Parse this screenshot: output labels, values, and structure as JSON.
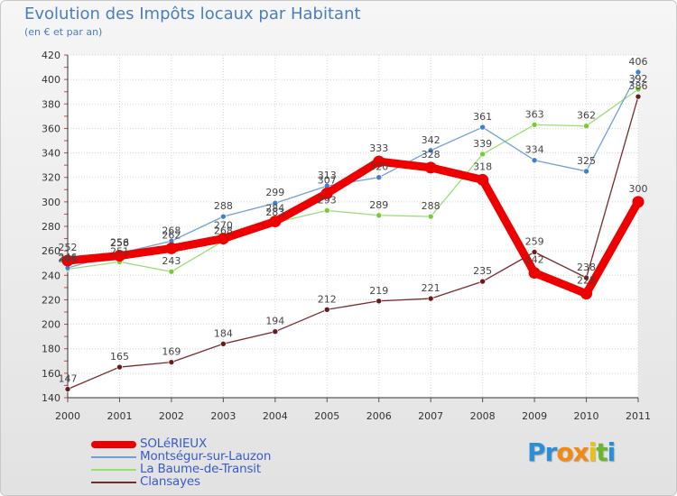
{
  "chart_data": {
    "type": "line",
    "title": "Evolution des Impôts locaux par Habitant",
    "subtitle": "(en € et par an)",
    "xlabel": "",
    "ylabel": "",
    "x": [
      "2000",
      "2001",
      "2002",
      "2003",
      "2004",
      "2005",
      "2006",
      "2007",
      "2008",
      "2009",
      "2010",
      "2011"
    ],
    "ylim": [
      140,
      420
    ],
    "yticks": [
      140,
      160,
      180,
      200,
      220,
      240,
      260,
      280,
      300,
      320,
      340,
      360,
      380,
      400,
      420
    ],
    "grid": true,
    "series": [
      {
        "name": "SOLéRIEUX",
        "color": "#ee0000",
        "marker": "#ee0000",
        "values": [
          252,
          256,
          262,
          270,
          284,
          307,
          333,
          328,
          318,
          242,
          225,
          300
        ]
      },
      {
        "name": "Montségur-sur-Lauzon",
        "color": "#6f9fd8",
        "marker": "#3f7fcf",
        "values": [
          246,
          258,
          268,
          288,
          299,
          313,
          320,
          342,
          361,
          334,
          325,
          406
        ]
      },
      {
        "name": "La Baume-de-Transit",
        "color": "#99dd77",
        "marker": "#77cc33",
        "values": [
          245,
          251,
          243,
          268,
          283,
          293,
          289,
          288,
          339,
          363,
          362,
          392
        ]
      },
      {
        "name": "Clansayes",
        "color": "#7a2a2a",
        "marker": "#6a1a1a",
        "values": [
          147,
          165,
          169,
          184,
          194,
          212,
          219,
          221,
          235,
          259,
          238,
          386
        ]
      }
    ]
  },
  "logo": {
    "letters": [
      "P",
      "r",
      "o",
      "x",
      "i",
      "t",
      "i"
    ],
    "colors": [
      "#2a8fd8",
      "#2a8fd8",
      "#f08a10",
      "#f08a10",
      "#f0c010",
      "#6ab82a",
      "#2a8fd8"
    ]
  }
}
